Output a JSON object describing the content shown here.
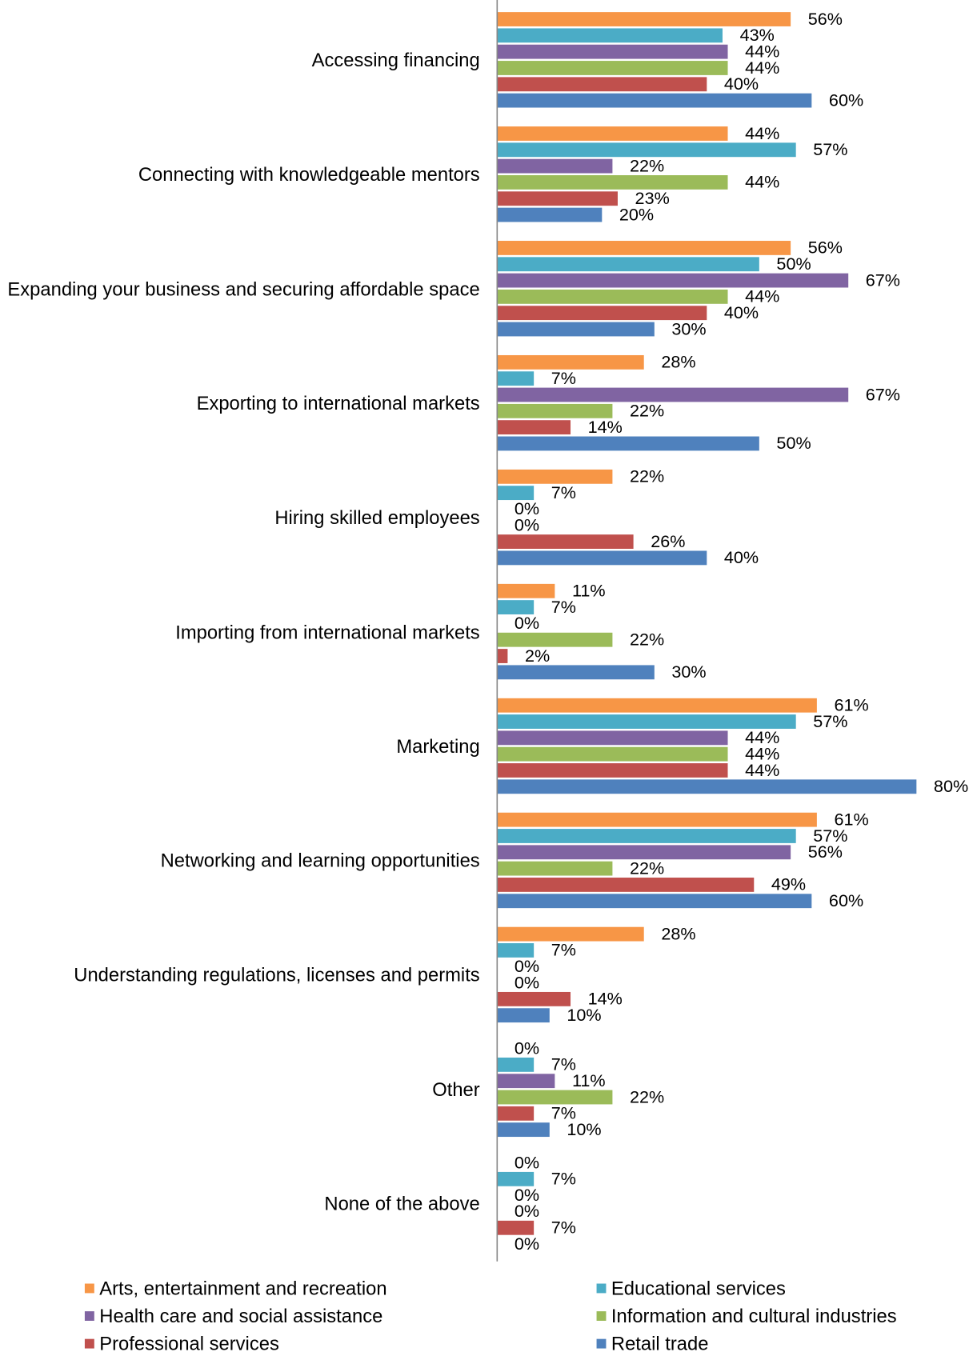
{
  "chart_data": {
    "type": "bar",
    "orientation": "horizontal",
    "categories": [
      "Accessing financing",
      "Connecting with knowledgeable mentors",
      "Expanding your business and securing affordable space",
      "Exporting to international markets",
      "Hiring skilled employees",
      "Importing from international markets",
      "Marketing",
      "Networking and learning opportunities",
      "Understanding regulations, licenses and permits",
      "Other",
      "None of the above"
    ],
    "xlim": [
      0,
      80
    ],
    "series": [
      {
        "name": "Arts, entertainment and recreation",
        "color": "#f79646",
        "values": [
          56,
          44,
          56,
          28,
          22,
          11,
          61,
          61,
          28,
          0,
          0
        ],
        "value_labels": [
          "56%",
          "44%",
          "56%",
          "28%",
          "22%",
          "11%",
          "61%",
          "61%",
          "28%",
          "0%",
          "0%"
        ]
      },
      {
        "name": "Educational services",
        "color": "#4bacc6",
        "values": [
          43,
          57,
          50,
          7,
          7,
          7,
          57,
          57,
          7,
          7,
          7
        ],
        "value_labels": [
          "43%",
          "57%",
          "50%",
          "7%",
          "7%",
          "7%",
          "57%",
          "57%",
          "7%",
          "7%",
          "7%"
        ]
      },
      {
        "name": "Health care and social assistance",
        "color": "#8064a2",
        "values": [
          44,
          22,
          67,
          67,
          0,
          0,
          44,
          56,
          0,
          11,
          0
        ],
        "value_labels": [
          "44%",
          "22%",
          "67%",
          "67%",
          "0%",
          "0%",
          "44%",
          "56%",
          "0%",
          "11%",
          "0%"
        ]
      },
      {
        "name": "Information and cultural industries",
        "color": "#9bbb59",
        "values": [
          44,
          44,
          44,
          22,
          0,
          22,
          44,
          22,
          0,
          22,
          0
        ],
        "value_labels": [
          "44%",
          "44%",
          "44%",
          "22%",
          "0%",
          "22%",
          "44%",
          "22%",
          "0%",
          "22%",
          "0%"
        ]
      },
      {
        "name": "Professional services",
        "color": "#c0504d",
        "values": [
          40,
          23,
          40,
          14,
          26,
          2,
          44,
          49,
          14,
          7,
          7
        ],
        "value_labels": [
          "40%",
          "23%",
          "40%",
          "14%",
          "26%",
          "2%",
          "44%",
          "49%",
          "14%",
          "7%",
          "7%"
        ]
      },
      {
        "name": "Retail trade",
        "color": "#4f81bd",
        "values": [
          60,
          20,
          30,
          50,
          40,
          30,
          80,
          60,
          10,
          10,
          0
        ],
        "value_labels": [
          "60%",
          "20%",
          "30%",
          "50%",
          "40%",
          "30%",
          "80%",
          "60%",
          "10%",
          "10%",
          "0%"
        ]
      }
    ],
    "legend": "bottom"
  }
}
